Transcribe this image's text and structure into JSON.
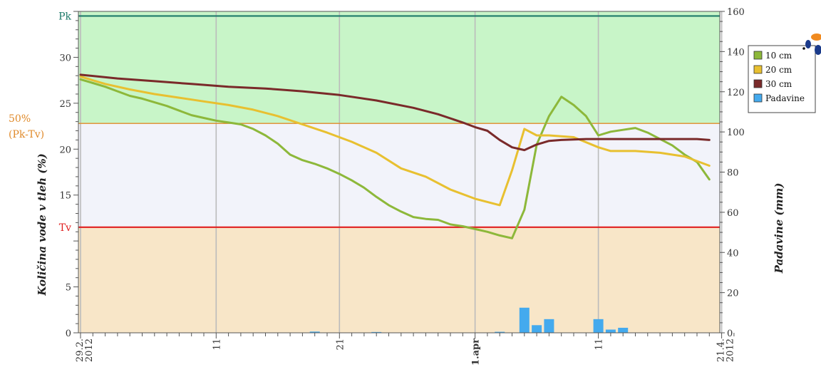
{
  "chart_data": {
    "type": "line",
    "title": "",
    "xlabel": "",
    "ylabel": "Količina vode v tleh (%)",
    "y2label": "Padavine (mm)",
    "x_range_days": [
      0,
      53
    ],
    "ylim": [
      0,
      35
    ],
    "y2lim": [
      0,
      160
    ],
    "yticks": [
      0,
      5,
      15,
      20,
      25,
      30
    ],
    "y2ticks": [
      0,
      20,
      40,
      60,
      80,
      100,
      120,
      140,
      160
    ],
    "x_ticks": [
      {
        "day": 0,
        "label": "29.2.",
        "label2": "2012",
        "bold": false
      },
      {
        "day": 11,
        "label": "11",
        "label2": "",
        "bold": false
      },
      {
        "day": 21,
        "label": "21",
        "label2": "",
        "bold": false
      },
      {
        "day": 32,
        "label": "1.apr",
        "label2": "",
        "bold": true
      },
      {
        "day": 42,
        "label": "11",
        "label2": "",
        "bold": false
      },
      {
        "day": 52,
        "label": "21.4.",
        "label2": "2012",
        "bold": false
      }
    ],
    "zones": [
      {
        "name": "above-50",
        "from": 22.8,
        "to": 35,
        "color": "#c8f5c8"
      },
      {
        "name": "middle",
        "from": 11.5,
        "to": 22.8,
        "color": "#f2f3fa"
      },
      {
        "name": "below-tv",
        "from": 0,
        "to": 11.5,
        "color": "#f8e6c8"
      }
    ],
    "reference_lines": [
      {
        "name": "Pk",
        "label": "Pk",
        "value": 34.5,
        "color": "#1e7a6a"
      },
      {
        "name": "50pct",
        "label": "50%",
        "label2": "(Pk-Tv)",
        "value": 22.8,
        "color": "#e08a2a"
      },
      {
        "name": "Tv",
        "label": "Tv",
        "value": 11.5,
        "color": "#e02020"
      }
    ],
    "legend_position": "top-right",
    "series": [
      {
        "name": "10 cm",
        "color": "#8db83a",
        "axis": "left",
        "points": [
          [
            0,
            27.6
          ],
          [
            1,
            27.2
          ],
          [
            2,
            26.8
          ],
          [
            3,
            26.3
          ],
          [
            4,
            25.8
          ],
          [
            5,
            25.5
          ],
          [
            6,
            25.1
          ],
          [
            7,
            24.7
          ],
          [
            8,
            24.2
          ],
          [
            9,
            23.7
          ],
          [
            10,
            23.4
          ],
          [
            11,
            23.1
          ],
          [
            12,
            22.9
          ],
          [
            13,
            22.7
          ],
          [
            14,
            22.2
          ],
          [
            15,
            21.5
          ],
          [
            16,
            20.6
          ],
          [
            17,
            19.4
          ],
          [
            18,
            18.8
          ],
          [
            19,
            18.4
          ],
          [
            20,
            17.9
          ],
          [
            21,
            17.3
          ],
          [
            22,
            16.6
          ],
          [
            23,
            15.8
          ],
          [
            24,
            14.8
          ],
          [
            25,
            13.9
          ],
          [
            26,
            13.2
          ],
          [
            27,
            12.6
          ],
          [
            28,
            12.4
          ],
          [
            29,
            12.3
          ],
          [
            30,
            11.8
          ],
          [
            31,
            11.6
          ],
          [
            32,
            11.3
          ],
          [
            33,
            11.0
          ],
          [
            34,
            10.6
          ],
          [
            35,
            10.3
          ],
          [
            36,
            13.4
          ],
          [
            37,
            20.5
          ],
          [
            38,
            23.6
          ],
          [
            39,
            25.7
          ],
          [
            40,
            24.8
          ],
          [
            41,
            23.6
          ],
          [
            42,
            21.5
          ],
          [
            43,
            21.9
          ],
          [
            44,
            22.1
          ],
          [
            45,
            22.3
          ],
          [
            46,
            21.8
          ],
          [
            47,
            21.1
          ],
          [
            48,
            20.4
          ],
          [
            49,
            19.4
          ],
          [
            50,
            18.6
          ],
          [
            51,
            16.7
          ]
        ]
      },
      {
        "name": "20 cm",
        "color": "#e8c030",
        "axis": "left",
        "points": [
          [
            0,
            27.9
          ],
          [
            2,
            27.1
          ],
          [
            4,
            26.5
          ],
          [
            6,
            26.0
          ],
          [
            8,
            25.6
          ],
          [
            10,
            25.2
          ],
          [
            12,
            24.8
          ],
          [
            14,
            24.3
          ],
          [
            16,
            23.6
          ],
          [
            18,
            22.7
          ],
          [
            20,
            21.8
          ],
          [
            22,
            20.8
          ],
          [
            24,
            19.6
          ],
          [
            26,
            17.9
          ],
          [
            28,
            17.0
          ],
          [
            30,
            15.6
          ],
          [
            32,
            14.6
          ],
          [
            34,
            13.9
          ],
          [
            35,
            17.7
          ],
          [
            36,
            22.2
          ],
          [
            37,
            21.5
          ],
          [
            38,
            21.5
          ],
          [
            40,
            21.3
          ],
          [
            42,
            20.2
          ],
          [
            43,
            19.8
          ],
          [
            45,
            19.8
          ],
          [
            47,
            19.6
          ],
          [
            49,
            19.2
          ],
          [
            51,
            18.2
          ]
        ]
      },
      {
        "name": "30 cm",
        "color": "#7a2a2a",
        "axis": "left",
        "points": [
          [
            0,
            28.1
          ],
          [
            3,
            27.7
          ],
          [
            6,
            27.4
          ],
          [
            9,
            27.1
          ],
          [
            12,
            26.8
          ],
          [
            15,
            26.6
          ],
          [
            18,
            26.3
          ],
          [
            21,
            25.9
          ],
          [
            24,
            25.3
          ],
          [
            27,
            24.5
          ],
          [
            29,
            23.8
          ],
          [
            31,
            22.9
          ],
          [
            32,
            22.4
          ],
          [
            33,
            22.0
          ],
          [
            34,
            21.0
          ],
          [
            35,
            20.2
          ],
          [
            36,
            19.9
          ],
          [
            37,
            20.5
          ],
          [
            38,
            20.9
          ],
          [
            39,
            21.0
          ],
          [
            41,
            21.1
          ],
          [
            44,
            21.1
          ],
          [
            47,
            21.1
          ],
          [
            50,
            21.1
          ],
          [
            51,
            21.0
          ]
        ]
      }
    ],
    "bars": {
      "name": "Padavine",
      "color": "#44aaee",
      "axis": "right",
      "points": [
        [
          19,
          0.6
        ],
        [
          24,
          0.4
        ],
        [
          34,
          0.5
        ],
        [
          36,
          12.5
        ],
        [
          37,
          3.8
        ],
        [
          38,
          6.8
        ],
        [
          42,
          6.8
        ],
        [
          43,
          1.6
        ],
        [
          44,
          2.5
        ]
      ]
    }
  }
}
